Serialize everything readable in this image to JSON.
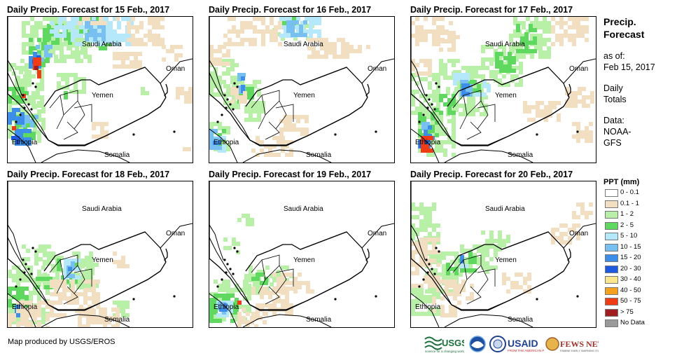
{
  "panels": [
    {
      "title": "Daily Precip. Forecast for 15 Feb., 2017"
    },
    {
      "title": "Daily Precip. Forecast for 16 Feb., 2017"
    },
    {
      "title": "Daily Precip. Forecast for 17 Feb., 2017"
    },
    {
      "title": "Daily Precip. Forecast for 18 Feb., 2017"
    },
    {
      "title": "Daily Precip. Forecast for 19 Feb., 2017"
    },
    {
      "title": "Daily Precip. Forecast for 20 Feb., 2017"
    }
  ],
  "map_labels": {
    "saudi_arabia": "Saudi Arabia",
    "oman": "Oman",
    "yemen": "Yemen",
    "ethiopia": "Ethiopia",
    "somalia": "Somalia"
  },
  "sidebar": {
    "title_line1": "Precip.",
    "title_line2": "Forecast",
    "asof_line1": "as of:",
    "asof_line2": "Feb 15, 2017",
    "daily_line1": "Daily",
    "daily_line2": "Totals",
    "data_line1": "Data:",
    "data_line2": "NOAA-",
    "data_line3": "GFS"
  },
  "legend": {
    "title": "PPT (mm)",
    "items": [
      {
        "label": "0 - 0.1",
        "color": "#ffffff"
      },
      {
        "label": "0.1 - 1",
        "color": "#f2dfc2"
      },
      {
        "label": "1 - 2",
        "color": "#b8f0a8"
      },
      {
        "label": "2 - 5",
        "color": "#5fd860"
      },
      {
        "label": "5 - 10",
        "color": "#b4e8fa"
      },
      {
        "label": "10 - 15",
        "color": "#78c0f2"
      },
      {
        "label": "15 - 20",
        "color": "#3c8ee8"
      },
      {
        "label": "20 - 30",
        "color": "#1e5ae0"
      },
      {
        "label": "30 - 40",
        "color": "#fae68c"
      },
      {
        "label": "40 - 50",
        "color": "#f5a01e"
      },
      {
        "label": "50 - 75",
        "color": "#f03c14"
      },
      {
        "label": "> 75",
        "color": "#a01e1e"
      },
      {
        "label": "No Data",
        "color": "#9a9a9a"
      }
    ]
  },
  "credit": "Map produced by USGS/EROS",
  "logos": [
    "usgs-logo",
    "noaa-logo",
    "usaid-logo",
    "fews-net-logo"
  ]
}
